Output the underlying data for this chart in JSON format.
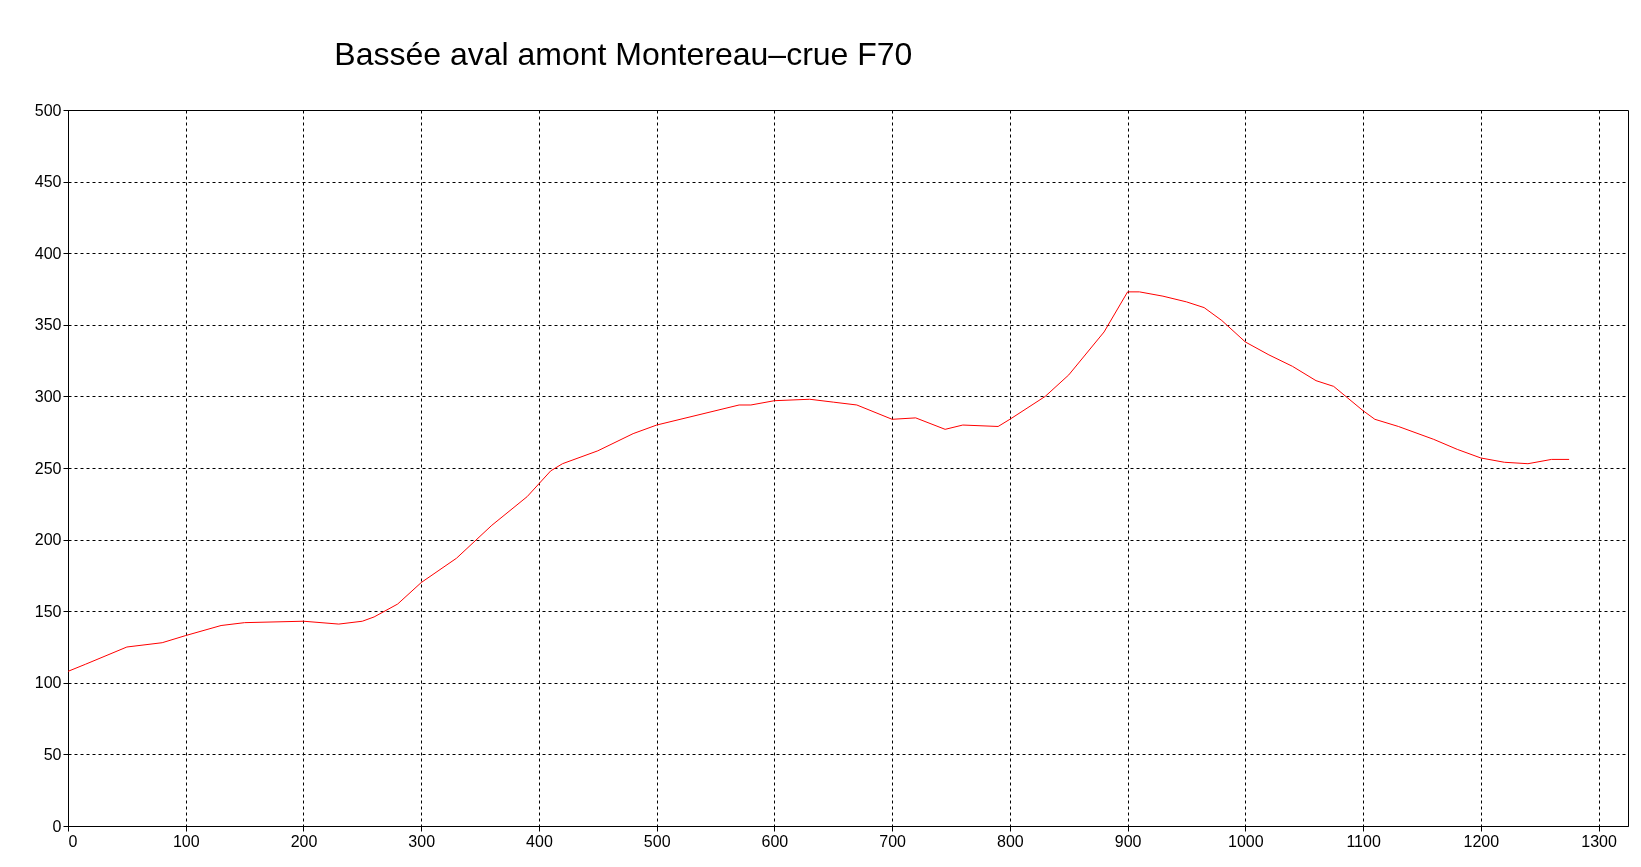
{
  "chart_data": {
    "type": "line",
    "title": "Bassée aval amont Montereau–crue F70",
    "x": [
      0,
      15,
      50,
      80,
      100,
      130,
      150,
      200,
      230,
      250,
      260,
      280,
      300,
      330,
      360,
      390,
      410,
      420,
      450,
      480,
      500,
      530,
      570,
      580,
      600,
      630,
      650,
      670,
      700,
      720,
      745,
      760,
      790,
      800,
      830,
      850,
      880,
      900,
      910,
      930,
      950,
      965,
      980,
      1000,
      1020,
      1040,
      1060,
      1075,
      1100,
      1110,
      1130,
      1160,
      1180,
      1200,
      1220,
      1240,
      1260,
      1275
    ],
    "series": [
      {
        "color": "#ff0000",
        "values": [
          108,
          113,
          125,
          128,
          133,
          140,
          142,
          143,
          141,
          143,
          146,
          155,
          170,
          187,
          210,
          230,
          248,
          253,
          262,
          274,
          280,
          286,
          294,
          294,
          297,
          298,
          296,
          294,
          284,
          285,
          277,
          280,
          279,
          284,
          300,
          315,
          345,
          373,
          373,
          370,
          366,
          362,
          353,
          338,
          329,
          321,
          311,
          307,
          290,
          284,
          279,
          270,
          263,
          257,
          254,
          253,
          256,
          256
        ]
      }
    ],
    "xlim": [
      0,
      1325
    ],
    "ylim": [
      0,
      500
    ],
    "xticks": [
      0,
      100,
      200,
      300,
      400,
      500,
      600,
      700,
      800,
      900,
      1000,
      1100,
      1200,
      1300
    ],
    "yticks": [
      0,
      50,
      100,
      150,
      200,
      250,
      300,
      350,
      400,
      450,
      500
    ],
    "grid": true,
    "marker": "none",
    "line_style": "solid"
  }
}
